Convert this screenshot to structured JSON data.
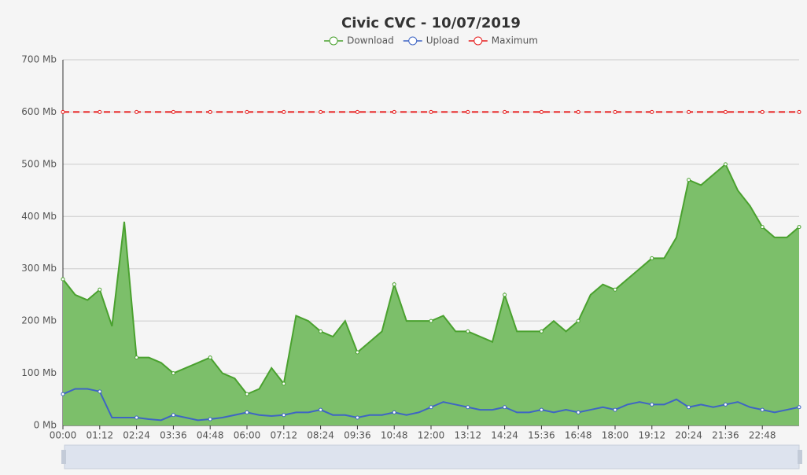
{
  "chart_data": {
    "type": "line",
    "title": "Civic CVC - 10/07/2019",
    "categories": [
      "00:00",
      null,
      null,
      "01:12",
      null,
      null,
      "02:24",
      null,
      null,
      "03:36",
      null,
      null,
      "04:48",
      null,
      null,
      "06:00",
      null,
      null,
      "07:12",
      null,
      null,
      "08:24",
      null,
      null,
      "09:36",
      null,
      null,
      "10:48",
      null,
      null,
      "12:00",
      null,
      null,
      "13:12",
      null,
      null,
      "14:24",
      null,
      null,
      "15:36",
      null,
      null,
      "16:48",
      null,
      null,
      "18:00",
      null,
      null,
      "19:12",
      null,
      null,
      "20:24",
      null,
      null,
      "21:36",
      null,
      null,
      "22:48",
      null,
      null,
      null
    ],
    "series": [
      {
        "name": "Download",
        "color": "#4aa12f",
        "area": true,
        "area_color": "#7cbf6a",
        "values": [
          280,
          250,
          240,
          260,
          190,
          390,
          130,
          130,
          120,
          100,
          110,
          120,
          130,
          100,
          90,
          60,
          70,
          110,
          80,
          210,
          200,
          180,
          170,
          200,
          140,
          160,
          180,
          270,
          200,
          200,
          200,
          210,
          180,
          180,
          170,
          160,
          250,
          180,
          180,
          180,
          200,
          180,
          200,
          250,
          270,
          260,
          280,
          300,
          320,
          320,
          360,
          470,
          460,
          480,
          500,
          450,
          420,
          380,
          360,
          360,
          380
        ]
      },
      {
        "name": "Upload",
        "color": "#3e65c4",
        "values": [
          60,
          70,
          70,
          65,
          15,
          15,
          15,
          12,
          10,
          20,
          15,
          10,
          12,
          15,
          20,
          25,
          20,
          18,
          20,
          25,
          25,
          30,
          20,
          20,
          15,
          20,
          20,
          25,
          20,
          25,
          35,
          45,
          40,
          35,
          30,
          30,
          35,
          25,
          25,
          30,
          25,
          30,
          25,
          30,
          35,
          30,
          40,
          45,
          40,
          40,
          50,
          35,
          40,
          35,
          40,
          45,
          35,
          30,
          25,
          30,
          35
        ]
      },
      {
        "name": "Maximum",
        "color": "#e62020",
        "dashed": true,
        "values": [
          600,
          600,
          600,
          600,
          600,
          600,
          600,
          600,
          600,
          600,
          600,
          600,
          600,
          600,
          600,
          600,
          600,
          600,
          600,
          600,
          600,
          600,
          600,
          600,
          600,
          600,
          600,
          600,
          600,
          600,
          600,
          600,
          600,
          600,
          600,
          600,
          600,
          600,
          600,
          600,
          600,
          600,
          600,
          600,
          600,
          600,
          600,
          600,
          600,
          600,
          600,
          600,
          600,
          600,
          600,
          600,
          600,
          600,
          600,
          600,
          600
        ]
      }
    ],
    "ylim": [
      0,
      700
    ],
    "yticks": [
      {
        "value": 0,
        "label": "0 Mb"
      },
      {
        "value": 100,
        "label": "100 Mb"
      },
      {
        "value": 200,
        "label": "200 Mb"
      },
      {
        "value": 300,
        "label": "300 Mb"
      },
      {
        "value": 400,
        "label": "400 Mb"
      },
      {
        "value": 500,
        "label": "500 Mb"
      },
      {
        "value": 600,
        "label": "600 Mb"
      },
      {
        "value": 700,
        "label": "700 Mb"
      }
    ],
    "grid": true
  }
}
